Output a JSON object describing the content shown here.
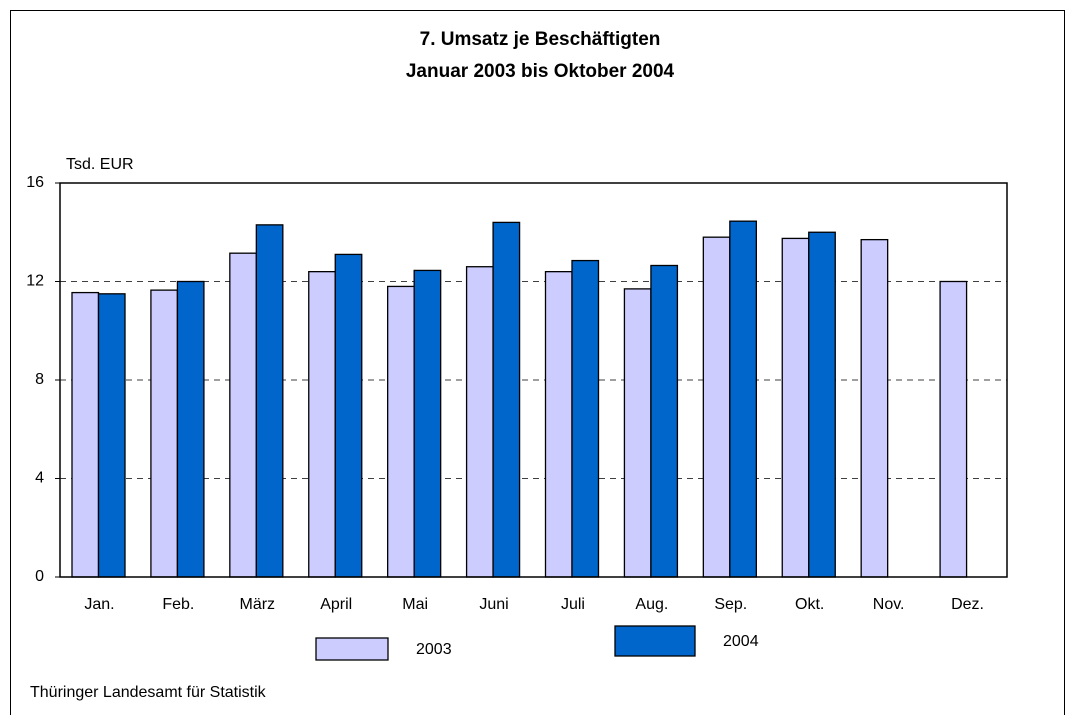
{
  "chart_data": {
    "type": "bar",
    "title": "7. Umsatz je Beschäftigten",
    "subtitle": "Januar 2003 bis Oktober 2004",
    "y_label": "Tsd. EUR",
    "source": "Thüringer Landesamt für Statistik",
    "categories": [
      "Jan.",
      "Feb.",
      "März",
      "April",
      "Mai",
      "Juni",
      "Juli",
      "Aug.",
      "Sep.",
      "Okt.",
      "Nov.",
      "Dez."
    ],
    "series": [
      {
        "name": "2003",
        "color": "#ccccff",
        "values": [
          11.55,
          11.65,
          13.15,
          12.4,
          11.8,
          12.6,
          12.4,
          11.7,
          13.8,
          13.75,
          13.7,
          12.0
        ]
      },
      {
        "name": "2004",
        "color": "#0066cc",
        "values": [
          11.5,
          12.0,
          14.3,
          13.1,
          12.45,
          14.4,
          12.85,
          12.65,
          14.45,
          14.0,
          null,
          null
        ]
      }
    ],
    "ylim": [
      0,
      16
    ],
    "yticks": [
      0,
      4,
      8,
      12,
      16
    ],
    "grid": true,
    "legend": "bottom"
  }
}
